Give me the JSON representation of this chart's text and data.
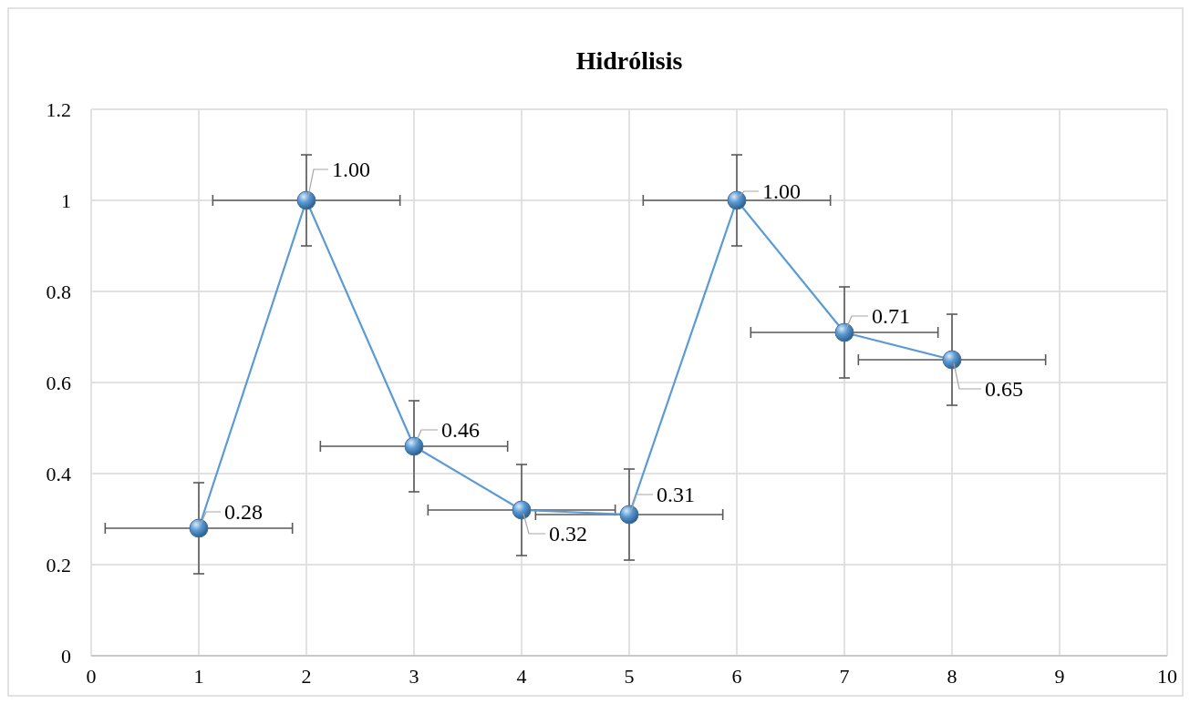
{
  "chart_data": {
    "type": "line",
    "title": "Hidrólisis",
    "x": [
      1,
      2,
      3,
      4,
      5,
      6,
      7,
      8
    ],
    "series": [
      {
        "color": "#5b9bd5",
        "values": [
          0.28,
          1.0,
          0.46,
          0.32,
          0.31,
          1.0,
          0.71,
          0.65
        ],
        "errors": [
          0.1,
          0.1,
          0.1,
          0.1,
          0.1,
          0.1,
          0.1,
          0.1
        ],
        "xerrors": [
          0.87,
          0.87,
          0.87,
          0.87,
          0.87,
          0.87,
          0.87,
          0.87
        ],
        "value_labels": [
          "0.28",
          "1.00",
          "0.46",
          "0.32",
          "0.31",
          "1.00",
          "0.71",
          "0.65"
        ]
      }
    ],
    "xlim": [
      0,
      10
    ],
    "xticks": [
      0,
      1,
      2,
      3,
      4,
      5,
      6,
      7,
      8,
      9,
      10
    ],
    "ylim": [
      0,
      1.2
    ],
    "yticks": [
      0,
      0.2,
      0.4,
      0.6,
      0.8,
      1,
      1.2
    ],
    "grid": true,
    "marker": "circle",
    "line_style": "solid"
  }
}
